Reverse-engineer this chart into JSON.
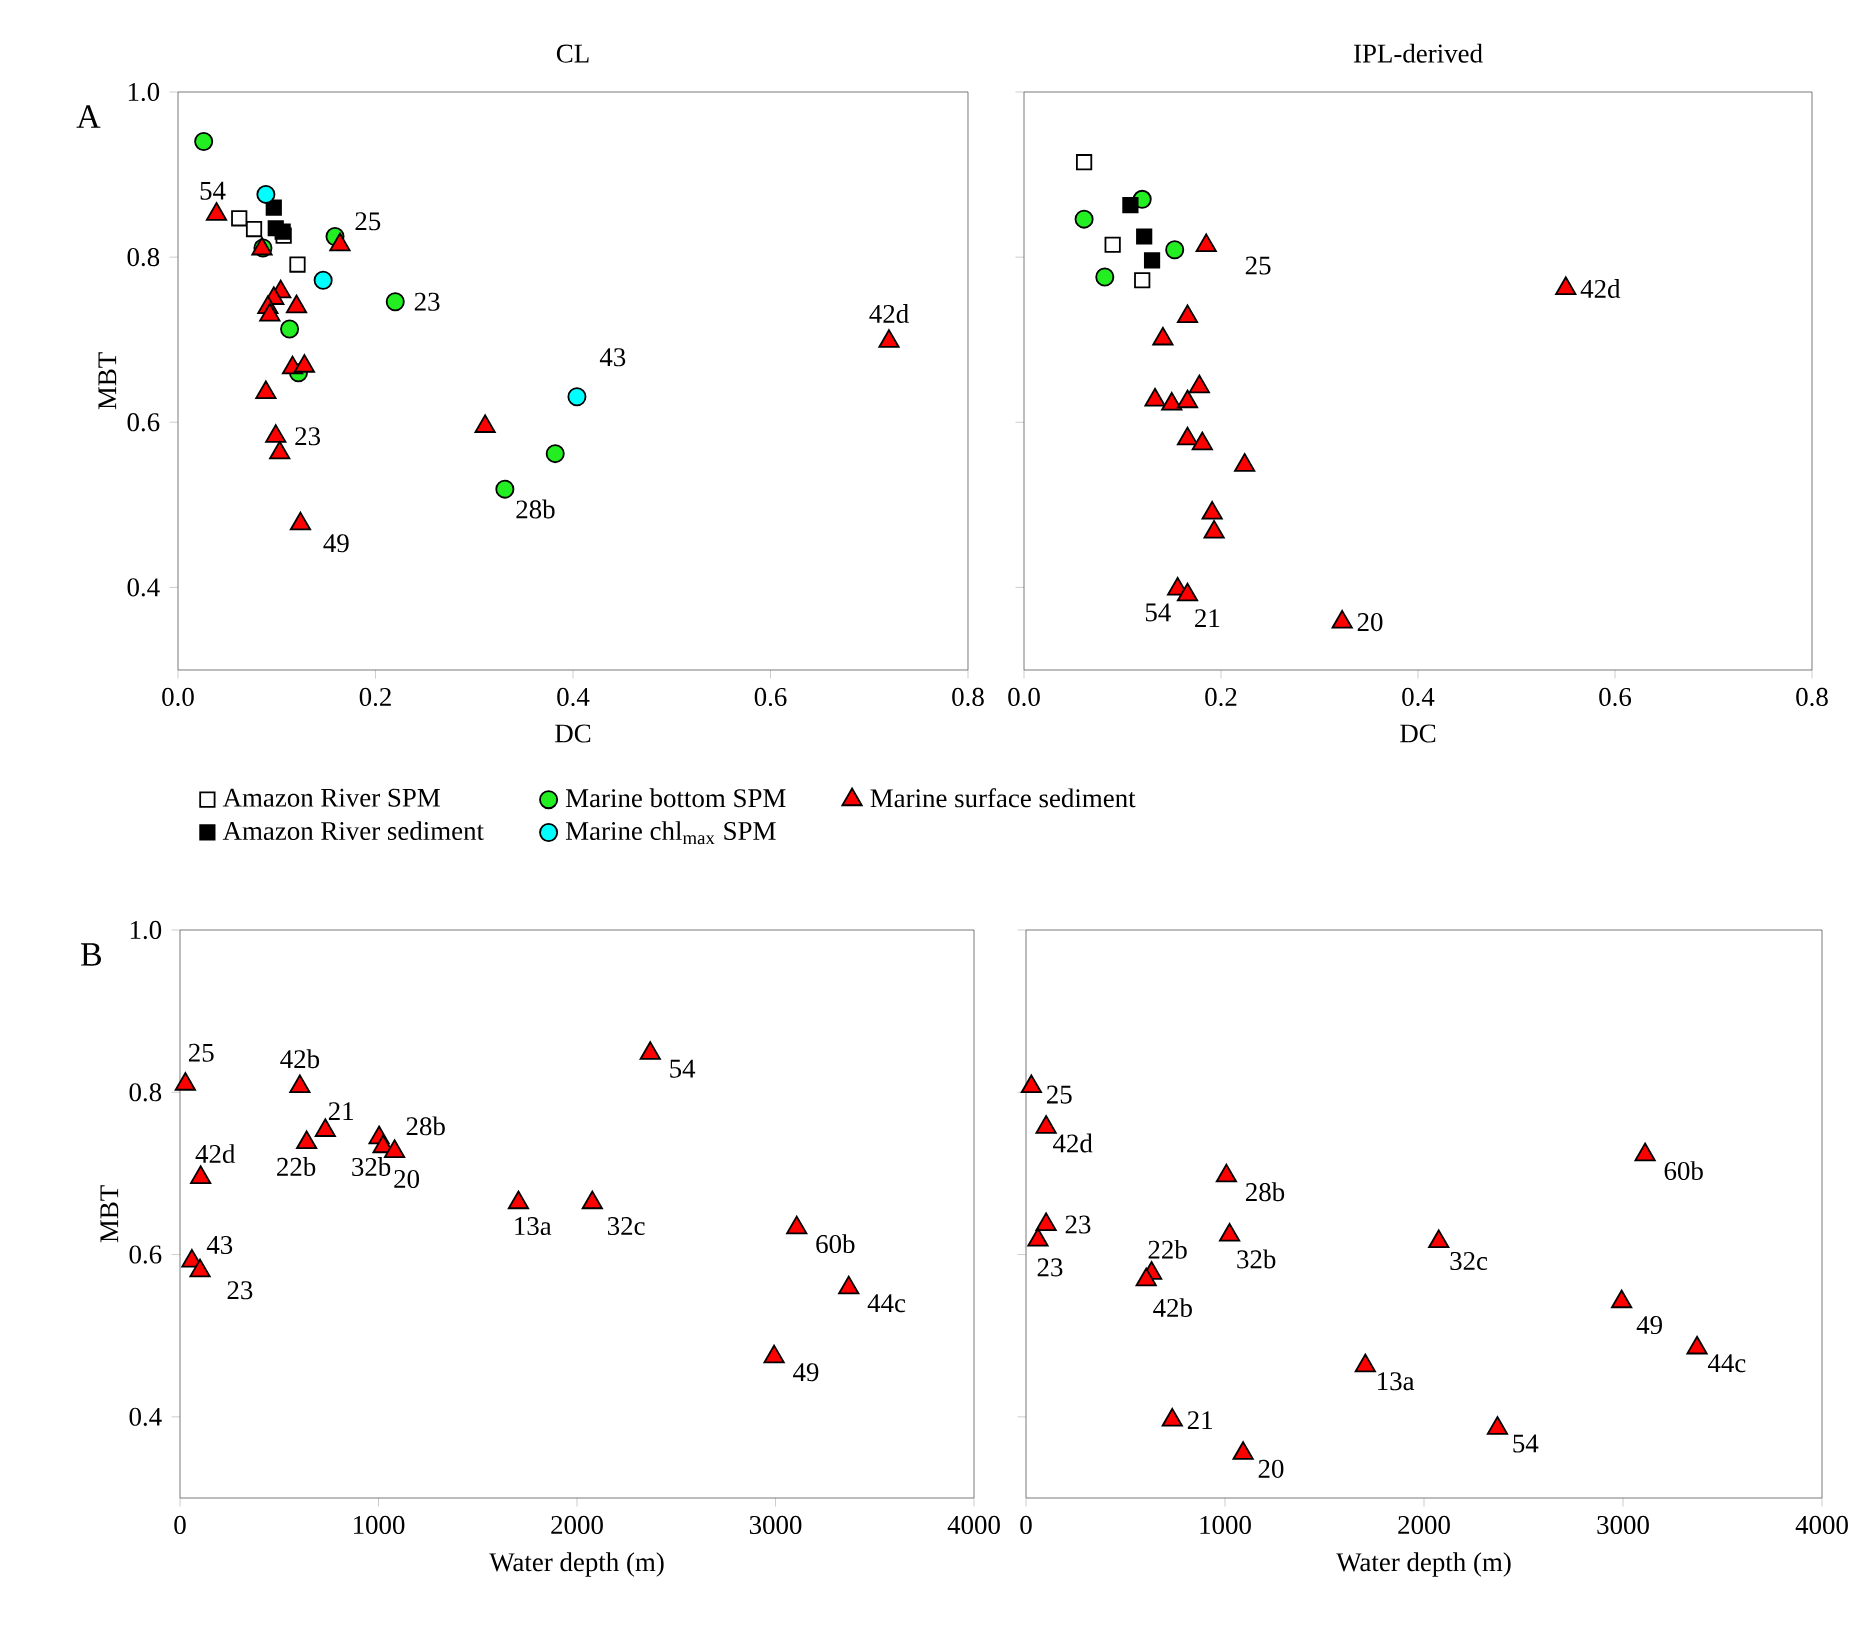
{
  "chart_data": [
    {
      "type": "scatter",
      "title": "CL",
      "xlabel": "DC",
      "ylabel": "MBT",
      "xlim": [
        0,
        0.8
      ],
      "ylim": [
        0.3,
        1.0
      ],
      "xticks": [
        {
          "value": 0,
          "label": "0.0"
        },
        0.2,
        0.4,
        0.6,
        0.8
      ],
      "yticks": [
        0.4,
        0.6,
        0.8,
        {
          "value": 1.0,
          "label": "1.0"
        }
      ],
      "legend": "bottom",
      "series": [
        {
          "name": "Amazon River SPM",
          "color": "#ffffff",
          "marker": "square",
          "x": [
            0.062,
            0.077,
            0.107,
            0.121
          ],
          "values": [
            0.847,
            0.834,
            0.826,
            0.791
          ]
        },
        {
          "name": "Marine bottom SPM",
          "color": "#22ee22",
          "marker": "circle",
          "x": [
            0.026,
            0.086,
            0.159,
            0.22,
            0.113,
            0.122,
            0.331,
            0.382
          ],
          "values": [
            0.94,
            0.811,
            0.825,
            0.746,
            0.713,
            0.66,
            0.519,
            0.562
          ]
        },
        {
          "name": "Marine surface sediment",
          "color": "#ff0000",
          "marker": "triangle",
          "x": [
            0.039,
            0.085,
            0.164,
            0.104,
            0.097,
            0.091,
            0.093,
            0.12,
            0.116,
            0.128,
            0.089,
            0.099,
            0.103,
            0.124,
            0.311,
            0.72
          ],
          "values": [
            0.852,
            0.81,
            0.815,
            0.758,
            0.75,
            0.739,
            0.73,
            0.74,
            0.666,
            0.668,
            0.636,
            0.583,
            0.563,
            0.477,
            0.595,
            0.698
          ]
        },
        {
          "name": "Amazon River sediment",
          "color": "#000000",
          "marker": "square",
          "x": [
            0.097,
            0.099,
            0.106
          ],
          "values": [
            0.86,
            0.835,
            0.831
          ]
        },
        {
          "name": "Marine chl$_{max}$ SPM",
          "color": "#00ffff",
          "marker": "circle",
          "x": [
            0.089,
            0.147,
            0.404
          ],
          "values": [
            0.876,
            0.772,
            0.631
          ]
        }
      ],
      "annotations": [
        "A",
        {
          "text": "54",
          "x": 0.039,
          "y": 0.852
        },
        {
          "text": "25",
          "x": 0.164,
          "y": 0.815
        },
        {
          "text": "23",
          "x": 0.22,
          "y": 0.746
        },
        {
          "text": "42d",
          "x": 0.72,
          "y": 0.698
        },
        {
          "text": "43",
          "x": 0.404,
          "y": 0.631
        },
        {
          "text": "23",
          "x": 0.099,
          "y": 0.583
        },
        {
          "text": "49",
          "x": 0.124,
          "y": 0.477
        },
        {
          "text": "28b",
          "x": 0.331,
          "y": 0.519
        }
      ]
    },
    {
      "type": "scatter",
      "title": "IPL-derived",
      "xlabel": "DC",
      "xlim": [
        0,
        0.8
      ],
      "ylim": [
        0.3,
        1.0
      ],
      "xticks": [
        {
          "value": 0,
          "label": "0.0"
        },
        0.2,
        0.4,
        0.6,
        0.8
      ],
      "yticks": [
        0.4,
        0.6,
        0.8,
        1.0
      ],
      "tick_labels": "x",
      "series": [
        {
          "color": "#ffffff",
          "marker": "square",
          "x": [
            0.061,
            0.09,
            0.12
          ],
          "values": [
            0.915,
            0.815,
            0.772
          ]
        },
        {
          "color": "#22ee22",
          "marker": "circle",
          "x": [
            0.061,
            0.12,
            0.153,
            0.082
          ],
          "values": [
            0.846,
            0.87,
            0.809,
            0.776
          ]
        },
        {
          "color": "#ff0000",
          "marker": "triangle",
          "x": [
            0.185,
            0.166,
            0.141,
            0.178,
            0.133,
            0.15,
            0.166,
            0.166,
            0.181,
            0.224,
            0.191,
            0.193,
            0.156,
            0.166,
            0.323,
            0.55
          ],
          "values": [
            0.814,
            0.728,
            0.701,
            0.643,
            0.627,
            0.622,
            0.625,
            0.58,
            0.574,
            0.548,
            0.49,
            0.467,
            0.398,
            0.391,
            0.358,
            0.762
          ]
        },
        {
          "color": "#000000",
          "marker": "square",
          "x": [
            0.108,
            0.122,
            0.13
          ],
          "values": [
            0.863,
            0.825,
            0.796
          ]
        }
      ],
      "annotations": [
        {
          "text": "25",
          "x": 0.185,
          "y": 0.814
        },
        {
          "text": "42d",
          "x": 0.55,
          "y": 0.762
        },
        {
          "text": "54",
          "x": 0.156,
          "y": 0.398
        },
        {
          "text": "21",
          "x": 0.166,
          "y": 0.391
        },
        {
          "text": "20",
          "x": 0.323,
          "y": 0.358
        }
      ]
    },
    {
      "type": "scatter",
      "xlabel": "Water depth (m)",
      "ylabel": "MBT",
      "xlim": [
        0,
        4000
      ],
      "ylim": [
        0.3,
        1.0
      ],
      "xticks": [
        0,
        1000,
        2000,
        3000,
        4000
      ],
      "yticks": [
        0.4,
        0.6,
        0.8,
        {
          "value": 1.0,
          "label": "1.0"
        }
      ],
      "series": [
        {
          "color": "#ff0000",
          "marker": "triangle",
          "x": [
            27,
            604,
            732,
            638,
            1003,
            1023,
            1081,
            104,
            1705,
            2077,
            2369,
            3107,
            3369,
            2993,
            60,
            101
          ],
          "values": [
            0.81,
            0.807,
            0.753,
            0.738,
            0.744,
            0.733,
            0.727,
            0.695,
            0.664,
            0.664,
            0.848,
            0.633,
            0.559,
            0.474,
            0.592,
            0.58
          ]
        }
      ],
      "annotations": [
        "B",
        {
          "text": "25",
          "x": 27,
          "y": 0.81
        },
        {
          "text": "42b",
          "x": 604,
          "y": 0.807
        },
        {
          "text": "21",
          "x": 732,
          "y": 0.753
        },
        {
          "text": "22b",
          "x": 638,
          "y": 0.738
        },
        {
          "text": "28b",
          "x": 1003,
          "y": 0.744
        },
        {
          "text": "32b",
          "x": 1023,
          "y": 0.733
        },
        {
          "text": "20",
          "x": 1081,
          "y": 0.727
        },
        {
          "text": "42d",
          "x": 104,
          "y": 0.695
        },
        {
          "text": "13a",
          "x": 1705,
          "y": 0.664
        },
        {
          "text": "32c",
          "x": 2077,
          "y": 0.664
        },
        {
          "text": "54",
          "x": 2369,
          "y": 0.848
        },
        {
          "text": "60b",
          "x": 3107,
          "y": 0.633
        },
        {
          "text": "44c",
          "x": 3369,
          "y": 0.559
        },
        {
          "text": "49",
          "x": 2993,
          "y": 0.474
        },
        {
          "text": "43",
          "x": 60,
          "y": 0.592
        },
        {
          "text": "23",
          "x": 101,
          "y": 0.58
        }
      ]
    },
    {
      "type": "scatter",
      "xlabel": "Water depth (m)",
      "xlim": [
        0,
        4000
      ],
      "ylim": [
        0.3,
        1.0
      ],
      "xticks": [
        0,
        1000,
        2000,
        3000,
        4000
      ],
      "yticks": [
        0.4,
        0.6,
        0.8,
        1.0
      ],
      "tick_labels": "x",
      "series": [
        {
          "color": "#ff0000",
          "marker": "triangle",
          "x": [
            27,
            101,
            1007,
            101,
            60,
            1023,
            631,
            604,
            2074,
            3111,
            2993,
            3372,
            1705,
            735,
            1091,
            2369
          ],
          "values": [
            0.807,
            0.757,
            0.697,
            0.637,
            0.618,
            0.624,
            0.577,
            0.569,
            0.616,
            0.723,
            0.542,
            0.485,
            0.463,
            0.396,
            0.355,
            0.386
          ]
        }
      ],
      "annotations": [
        {
          "text": "25",
          "x": 27,
          "y": 0.807
        },
        {
          "text": "42d",
          "x": 101,
          "y": 0.757
        },
        {
          "text": "28b",
          "x": 1007,
          "y": 0.697
        },
        {
          "text": "23",
          "x": 101,
          "y": 0.637
        },
        {
          "text": "23",
          "x": 60,
          "y": 0.618
        },
        {
          "text": "32b",
          "x": 1023,
          "y": 0.624
        },
        {
          "text": "22b",
          "x": 631,
          "y": 0.577
        },
        {
          "text": "42b",
          "x": 604,
          "y": 0.569
        },
        {
          "text": "32c",
          "x": 2074,
          "y": 0.616
        },
        {
          "text": "60b",
          "x": 3111,
          "y": 0.723
        },
        {
          "text": "49",
          "x": 2993,
          "y": 0.542
        },
        {
          "text": "44c",
          "x": 3372,
          "y": 0.485
        },
        {
          "text": "13a",
          "x": 1705,
          "y": 0.463
        },
        {
          "text": "21",
          "x": 735,
          "y": 0.396
        },
        {
          "text": "20",
          "x": 1091,
          "y": 0.355
        },
        {
          "text": "54",
          "x": 2369,
          "y": 0.386
        }
      ]
    }
  ]
}
